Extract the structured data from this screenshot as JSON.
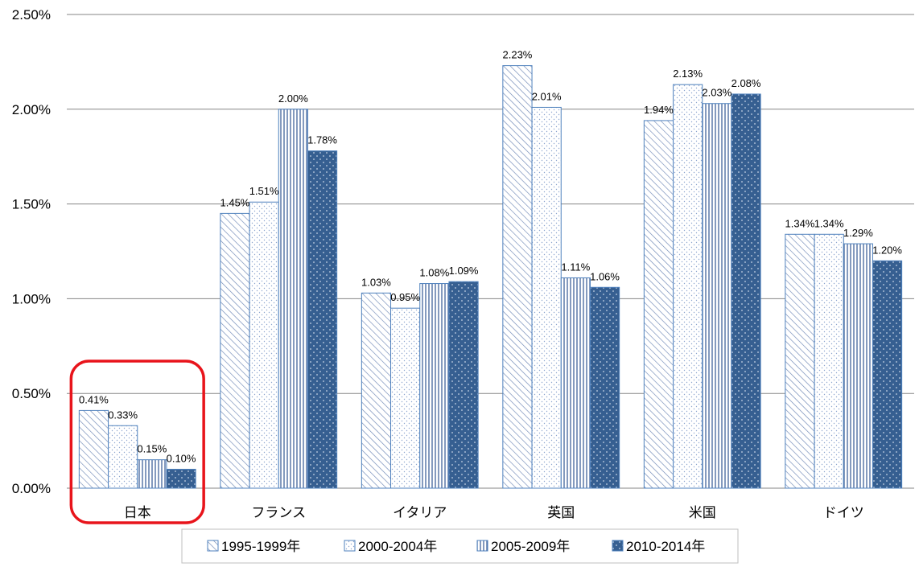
{
  "chart_data": {
    "type": "bar",
    "categories": [
      "日本",
      "フランス",
      "イタリア",
      "英国",
      "米国",
      "ドイツ"
    ],
    "series": [
      {
        "name": "1995-1999年",
        "values": [
          0.41,
          1.45,
          1.03,
          2.23,
          1.94,
          1.34
        ],
        "labels": [
          "0.41%",
          "1.45%",
          "1.03%",
          "2.23%",
          "1.94%",
          "1.34%"
        ]
      },
      {
        "name": "2000-2004年",
        "values": [
          0.33,
          1.51,
          0.95,
          2.01,
          2.13,
          1.34
        ],
        "labels": [
          "0.33%",
          "1.51%",
          "0.95%",
          "2.01%",
          "2.13%",
          "1.34%"
        ]
      },
      {
        "name": "2005-2009年",
        "values": [
          0.15,
          2.0,
          1.08,
          1.11,
          2.03,
          1.29
        ],
        "labels": [
          "0.15%",
          "2.00%",
          "1.08%",
          "1.11%",
          "2.03%",
          "1.29%"
        ]
      },
      {
        "name": "2010-2014年",
        "values": [
          0.1,
          1.78,
          1.09,
          1.06,
          2.08,
          1.2
        ],
        "labels": [
          "0.10%",
          "1.78%",
          "1.09%",
          "1.06%",
          "2.08%",
          "1.20%"
        ]
      }
    ],
    "ylim": [
      0,
      2.5
    ],
    "yticks": [
      "0.00%",
      "0.50%",
      "1.00%",
      "1.50%",
      "2.00%",
      "2.50%"
    ],
    "title": "",
    "xlabel": "",
    "ylabel": "",
    "grid": "horizontal",
    "legend": "bottom",
    "highlight_category": "日本",
    "colors": {
      "outline": "#4f81bd",
      "dark_fill": "#365f91",
      "grid": "#868686",
      "highlight": "#e8141b"
    }
  }
}
